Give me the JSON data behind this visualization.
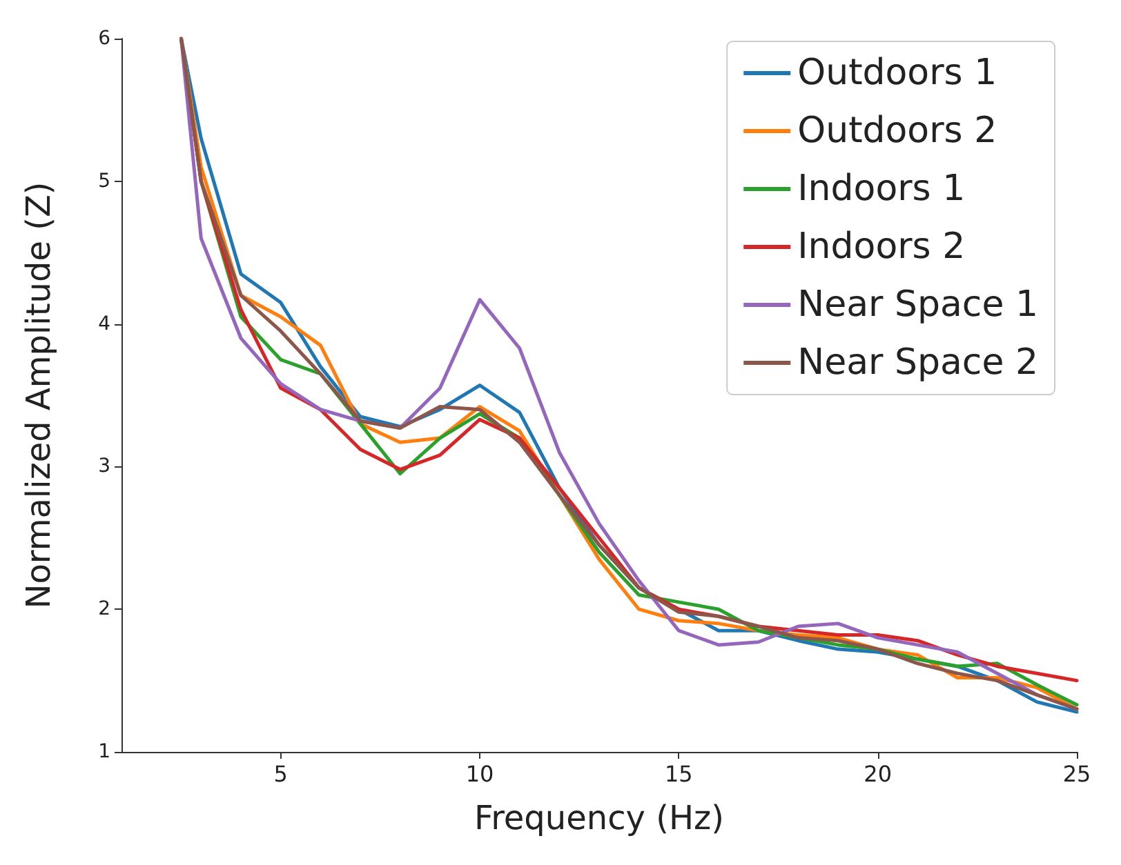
{
  "chart_data": {
    "type": "line",
    "xlabel": "Frequency (Hz)",
    "ylabel": "Normalized Amplitude (Z)",
    "x": [
      2.5,
      3,
      4,
      5,
      6,
      7,
      8,
      9,
      10,
      11,
      12,
      13,
      14,
      15,
      16,
      17,
      18,
      19,
      20,
      21,
      22,
      23,
      24,
      25
    ],
    "series": [
      {
        "name": "Outdoors 1",
        "color": "#1f77b4",
        "values": [
          6,
          5.3,
          4.35,
          4.15,
          3.7,
          3.35,
          3.28,
          3.4,
          3.57,
          3.38,
          2.85,
          2.45,
          2.15,
          2.0,
          1.85,
          1.85,
          1.78,
          1.72,
          1.7,
          1.65,
          1.6,
          1.5,
          1.35,
          1.28
        ]
      },
      {
        "name": "Outdoors 2",
        "color": "#ff7f0e",
        "values": [
          6,
          5.1,
          4.2,
          4.05,
          3.85,
          3.3,
          3.17,
          3.2,
          3.42,
          3.25,
          2.8,
          2.35,
          2.0,
          1.92,
          1.9,
          1.85,
          1.82,
          1.8,
          1.72,
          1.68,
          1.52,
          1.52,
          1.45,
          1.3
        ]
      },
      {
        "name": "Indoors 1",
        "color": "#2ca02c",
        "values": [
          6,
          5.0,
          4.05,
          3.75,
          3.65,
          3.3,
          2.95,
          3.2,
          3.37,
          3.2,
          2.8,
          2.4,
          2.1,
          2.05,
          2.0,
          1.85,
          1.8,
          1.75,
          1.72,
          1.65,
          1.6,
          1.62,
          1.47,
          1.33
        ]
      },
      {
        "name": "Indoors 2",
        "color": "#d62728",
        "values": [
          6,
          5.0,
          4.1,
          3.55,
          3.4,
          3.12,
          2.98,
          3.08,
          3.33,
          3.2,
          2.85,
          2.5,
          2.15,
          2.0,
          1.95,
          1.88,
          1.85,
          1.82,
          1.82,
          1.78,
          1.68,
          1.6,
          1.55,
          1.5
        ]
      },
      {
        "name": "Near Space 1",
        "color": "#9467bd",
        "values": [
          6,
          4.6,
          3.9,
          3.58,
          3.4,
          3.32,
          3.27,
          3.55,
          4.17,
          3.83,
          3.1,
          2.6,
          2.2,
          1.85,
          1.75,
          1.77,
          1.88,
          1.9,
          1.8,
          1.75,
          1.7,
          1.55,
          1.4,
          1.3
        ]
      },
      {
        "name": "Near Space 2",
        "color": "#8c564b",
        "values": [
          6,
          5.0,
          4.2,
          3.95,
          3.65,
          3.32,
          3.27,
          3.42,
          3.4,
          3.17,
          2.8,
          2.45,
          2.15,
          1.98,
          1.95,
          1.88,
          1.8,
          1.78,
          1.72,
          1.62,
          1.55,
          1.5,
          1.4,
          1.3
        ]
      }
    ],
    "xlim": [
      1,
      25
    ],
    "xticks": [
      5,
      10,
      15,
      20,
      25
    ],
    "ylim": [
      1,
      6
    ],
    "yticks": [
      1,
      2,
      3,
      4,
      5,
      6
    ],
    "grid": false,
    "legend": "top right",
    "marker": "none",
    "line_style": "solid"
  }
}
